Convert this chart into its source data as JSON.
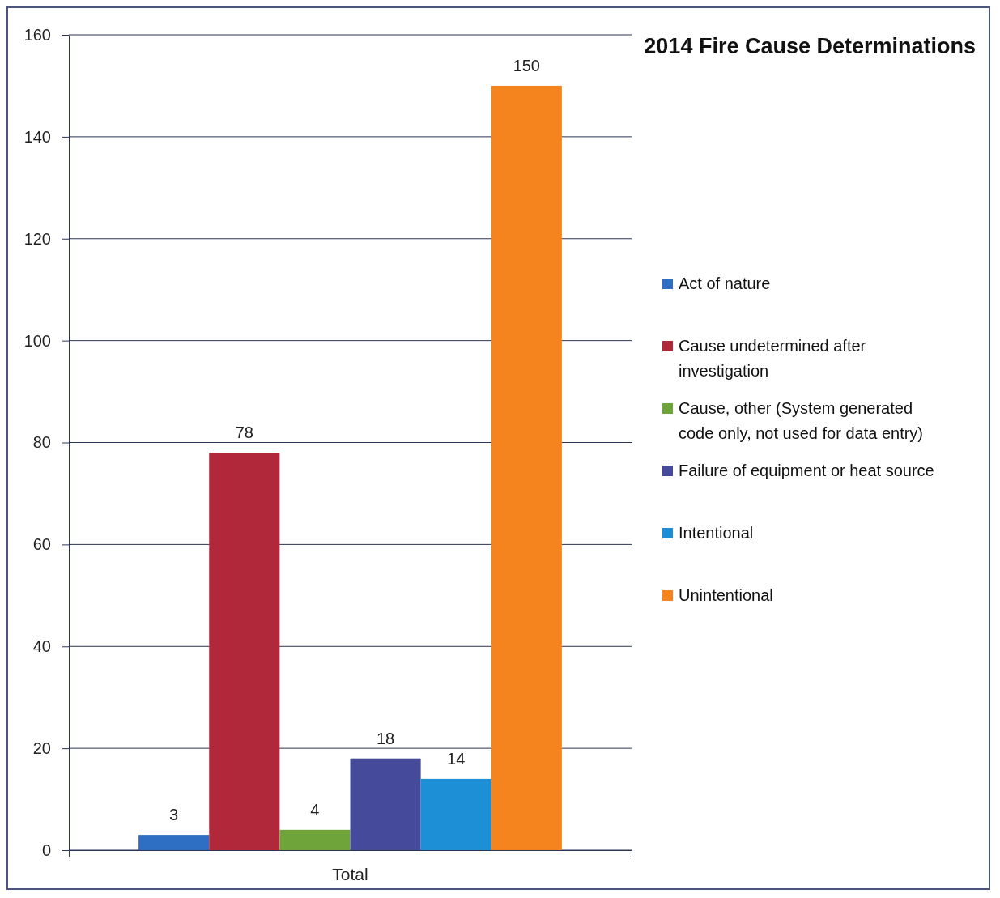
{
  "chart_data": {
    "type": "bar",
    "title": "2014 Fire Cause Determinations",
    "categories": [
      "Total"
    ],
    "series": [
      {
        "name": "Act of nature",
        "color": "#2e6fc4",
        "values": [
          3
        ]
      },
      {
        "name": "Cause undetermined after investigation",
        "color": "#b0283a",
        "values": [
          78
        ]
      },
      {
        "name": "Cause, other (System generated code only, not used for data entry)",
        "color": "#6fa43a",
        "values": [
          4
        ]
      },
      {
        "name": "Failure of equipment or heat source",
        "color": "#454a9a",
        "values": [
          18
        ]
      },
      {
        "name": "Intentional",
        "color": "#1c8fd6",
        "values": [
          14
        ]
      },
      {
        "name": "Unintentional",
        "color": "#f5841f",
        "values": [
          150
        ]
      }
    ],
    "ylim": [
      0,
      160
    ],
    "yticks": [
      0,
      20,
      40,
      60,
      80,
      100,
      120,
      140,
      160
    ],
    "grid": "y",
    "data_labels": true,
    "legend": "right"
  }
}
